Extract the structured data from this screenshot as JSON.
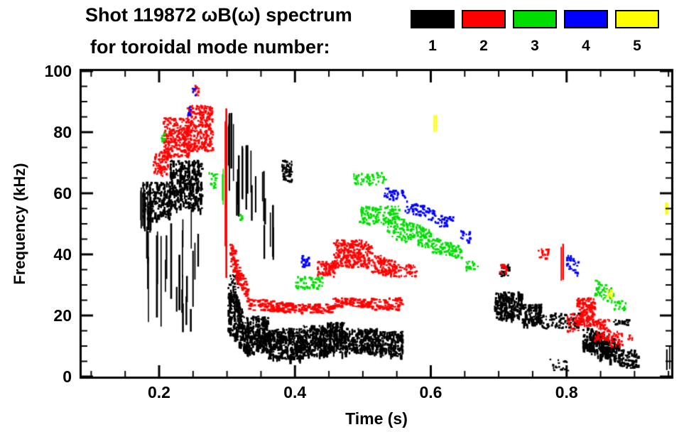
{
  "title": {
    "line1": "Shot 119872 ωB(ω) spectrum",
    "line2": "for toroidal mode number:"
  },
  "legend": {
    "modes": [
      {
        "label": "1",
        "color": "#000000"
      },
      {
        "label": "2",
        "color": "#ff0000"
      },
      {
        "label": "3",
        "color": "#00dd00"
      },
      {
        "label": "4",
        "color": "#0000ff"
      },
      {
        "label": "5",
        "color": "#ffff00"
      }
    ]
  },
  "chart_data": {
    "type": "scatter",
    "title": "Shot 119872 ωB(ω) spectrum",
    "subtitle": "for toroidal mode number:",
    "xlabel": "Time (s)",
    "ylabel": "Frequency (kHz)",
    "xlim": [
      0.086,
      0.954
    ],
    "ylim": [
      0,
      100
    ],
    "x_major_ticks": [
      0.2,
      0.4,
      0.6,
      0.8
    ],
    "x_tick_labels": [
      "0.2",
      "0.4",
      "0.6",
      "0.8"
    ],
    "x_minor_step": 0.05,
    "y_major_ticks": [
      0,
      20,
      40,
      60,
      80,
      100
    ],
    "y_tick_labels": [
      "0",
      "20",
      "40",
      "60",
      "80",
      "100"
    ],
    "y_minor_step": 5,
    "grid": false,
    "legend_position": "top-right",
    "cluster_format": "t=[t0,t1] s; f=[fmin,fmax] kHz at t0; f2 optional band at t1; n marks; s: d=dots, t=trace, v=vertical-streaks (len in kHz); vs=vertical texture",
    "series": [
      {
        "name": "n=1",
        "mode": 1,
        "color": "#000000",
        "clusters": [
          {
            "s": "v",
            "t": [
              0.172,
              0.196
            ],
            "f": [
              46,
              62
            ],
            "n": 10,
            "len": [
              5,
              14
            ]
          },
          {
            "s": "d",
            "t": [
              0.175,
              0.215
            ],
            "f": [
              52,
              64
            ],
            "n": 170,
            "vs": true
          },
          {
            "s": "v",
            "t": [
              0.18,
              0.215
            ],
            "f": [
              16,
              52
            ],
            "n": 9,
            "len": [
              10,
              30
            ]
          },
          {
            "s": "d",
            "t": [
              0.215,
              0.262
            ],
            "f": [
              55,
              71
            ],
            "n": 300,
            "vs": true
          },
          {
            "s": "v",
            "t": [
              0.215,
              0.26
            ],
            "f": [
              20,
              55
            ],
            "n": 10,
            "len": [
              8,
              26
            ]
          },
          {
            "s": "v",
            "t": [
              0.222,
              0.252
            ],
            "f": [
              14,
              30
            ],
            "n": 5,
            "len": [
              4,
              10
            ]
          },
          {
            "s": "v",
            "t": [
              0.296,
              0.31
            ],
            "f": [
              60,
              88
            ],
            "n": 7,
            "len": [
              10,
              26
            ]
          },
          {
            "s": "v",
            "t": [
              0.312,
              0.335
            ],
            "f": [
              52,
              76
            ],
            "n": 8,
            "len": [
              8,
              22
            ]
          },
          {
            "s": "v",
            "t": [
              0.335,
              0.355
            ],
            "f": [
              48,
              72
            ],
            "n": 5,
            "len": [
              6,
              18
            ]
          },
          {
            "s": "v",
            "t": [
              0.35,
              0.372
            ],
            "f": [
              38,
              58
            ],
            "n": 4,
            "len": [
              8,
              18
            ]
          },
          {
            "s": "d",
            "t": [
              0.38,
              0.394
            ],
            "f": [
              64,
              71
            ],
            "n": 60
          },
          {
            "s": "d",
            "t": [
              0.3,
              0.322
            ],
            "f": [
              14,
              30
            ],
            "f2": [
              10,
              24
            ],
            "n": 170,
            "vs": true
          },
          {
            "s": "d",
            "t": [
              0.302,
              0.315
            ],
            "f": [
              26,
              34
            ],
            "n": 30
          },
          {
            "s": "d",
            "t": [
              0.322,
              0.36
            ],
            "f": [
              8,
              20
            ],
            "n": 270,
            "vs": true
          },
          {
            "s": "d",
            "t": [
              0.36,
              0.41
            ],
            "f": [
              6,
              16
            ],
            "n": 310,
            "vs": true
          },
          {
            "s": "d",
            "t": [
              0.41,
              0.445
            ],
            "f": [
              7,
              17
            ],
            "n": 230,
            "vs": true
          },
          {
            "s": "d",
            "t": [
              0.445,
              0.47
            ],
            "f": [
              8,
              18
            ],
            "n": 170,
            "vs": true
          },
          {
            "s": "d",
            "t": [
              0.47,
              0.52
            ],
            "f": [
              8,
              16
            ],
            "n": 230,
            "vs": true
          },
          {
            "s": "d",
            "t": [
              0.52,
              0.558
            ],
            "f": [
              7,
              15
            ],
            "n": 160,
            "vs": true
          },
          {
            "s": "d",
            "t": [
              0.693,
              0.733
            ],
            "f": [
              19,
              28
            ],
            "n": 210,
            "vs": true
          },
          {
            "s": "d",
            "t": [
              0.733,
              0.762
            ],
            "f": [
              17,
              24
            ],
            "n": 130,
            "vs": true
          },
          {
            "s": "d",
            "t": [
              0.762,
              0.82
            ],
            "f": [
              16,
              21
            ],
            "n": 90
          },
          {
            "s": "d",
            "t": [
              0.7,
              0.714
            ],
            "f": [
              33,
              37
            ],
            "n": 25
          },
          {
            "s": "d",
            "t": [
              0.823,
              0.876
            ],
            "f": [
              8,
              17
            ],
            "f2": [
              5,
              12
            ],
            "n": 250,
            "vs": true
          },
          {
            "s": "d",
            "t": [
              0.876,
              0.905
            ],
            "f": [
              3,
              9
            ],
            "n": 100
          },
          {
            "s": "d",
            "t": [
              0.868,
              0.892
            ],
            "f": [
              17,
              19
            ],
            "n": 25
          },
          {
            "s": "d",
            "t": [
              0.77,
              0.802
            ],
            "f": [
              2,
              6
            ],
            "n": 18
          },
          {
            "s": "v",
            "t": [
              0.946,
              0.952
            ],
            "f": [
              2,
              10
            ],
            "n": 2,
            "len": [
              5,
              8
            ]
          }
        ]
      },
      {
        "name": "n=2",
        "mode": 2,
        "color": "#ff0000",
        "clusters": [
          {
            "s": "d",
            "t": [
              0.19,
              0.212
            ],
            "f": [
              66,
              74
            ],
            "n": 80
          },
          {
            "s": "d",
            "t": [
              0.205,
              0.243
            ],
            "f": [
              72,
              85
            ],
            "n": 260
          },
          {
            "s": "d",
            "t": [
              0.24,
              0.278
            ],
            "f": [
              74,
              89
            ],
            "n": 280
          },
          {
            "s": "d",
            "t": [
              0.248,
              0.258
            ],
            "f": [
              92,
              96
            ],
            "n": 12
          },
          {
            "s": "v",
            "t": [
              0.296,
              0.303
            ],
            "f": [
              26,
              89
            ],
            "n": 3,
            "len": [
              30,
              60
            ]
          },
          {
            "s": "t",
            "t": [
              0.303,
              0.33
            ],
            "f": [
              36,
              46
            ],
            "f2": [
              24,
              29
            ],
            "n": 90
          },
          {
            "s": "t",
            "t": [
              0.33,
              0.405
            ],
            "f": [
              22,
              26
            ],
            "f2": [
              21,
              24
            ],
            "n": 120
          },
          {
            "s": "t",
            "t": [
              0.405,
              0.455
            ],
            "f": [
              21,
              24
            ],
            "n": 70
          },
          {
            "s": "t",
            "t": [
              0.455,
              0.512
            ],
            "f": [
              23,
              26
            ],
            "n": 85
          },
          {
            "s": "t",
            "t": [
              0.512,
              0.556
            ],
            "f": [
              22,
              26
            ],
            "n": 55
          },
          {
            "s": "d",
            "t": [
              0.432,
              0.458
            ],
            "f": [
              33,
              38
            ],
            "n": 80
          },
          {
            "s": "d",
            "t": [
              0.455,
              0.512
            ],
            "f": [
              36,
              45
            ],
            "n": 280
          },
          {
            "s": "d",
            "t": [
              0.512,
              0.546
            ],
            "f": [
              34,
              41
            ],
            "f2": [
              33,
              38
            ],
            "n": 120
          },
          {
            "s": "d",
            "t": [
              0.546,
              0.578
            ],
            "f": [
              33,
              37
            ],
            "n": 45
          },
          {
            "s": "d",
            "t": [
              0.7,
              0.711
            ],
            "f": [
              34,
              37
            ],
            "n": 15
          },
          {
            "s": "d",
            "t": [
              0.757,
              0.774
            ],
            "f": [
              39,
              42
            ],
            "n": 20
          },
          {
            "s": "v",
            "t": [
              0.79,
              0.797
            ],
            "f": [
              31,
              44
            ],
            "n": 2,
            "len": [
              8,
              12
            ]
          },
          {
            "s": "d",
            "t": [
              0.8,
              0.817
            ],
            "f": [
              15,
              21
            ],
            "n": 30
          },
          {
            "s": "d",
            "t": [
              0.814,
              0.84
            ],
            "f": [
              17,
              26
            ],
            "n": 170
          },
          {
            "s": "d",
            "t": [
              0.84,
              0.862
            ],
            "f": [
              12,
              19
            ],
            "n": 85
          },
          {
            "s": "d",
            "t": [
              0.862,
              0.884
            ],
            "f": [
              10,
              15
            ],
            "n": 30
          },
          {
            "s": "d",
            "t": [
              0.888,
              0.897
            ],
            "f": [
              12,
              14
            ],
            "n": 6
          }
        ]
      },
      {
        "name": "n=3",
        "mode": 3,
        "color": "#00dd00",
        "clusters": [
          {
            "s": "d",
            "t": [
              0.2,
              0.211
            ],
            "f": [
              77,
              80
            ],
            "n": 10
          },
          {
            "s": "d",
            "t": [
              0.272,
              0.285
            ],
            "f": [
              62,
              67
            ],
            "n": 18
          },
          {
            "s": "v",
            "t": [
              0.29,
              0.296
            ],
            "f": [
              56,
              70
            ],
            "n": 2,
            "len": [
              8,
              12
            ]
          },
          {
            "s": "d",
            "t": [
              0.315,
              0.323
            ],
            "f": [
              51,
              54
            ],
            "n": 8
          },
          {
            "s": "d",
            "t": [
              0.4,
              0.44
            ],
            "f": [
              29,
              33
            ],
            "n": 55
          },
          {
            "s": "d",
            "t": [
              0.485,
              0.532
            ],
            "f": [
              63,
              67
            ],
            "n": 50
          },
          {
            "s": "d",
            "t": [
              0.494,
              0.552
            ],
            "f": [
              50,
              56
            ],
            "n": 130
          },
          {
            "s": "d",
            "t": [
              0.535,
              0.6
            ],
            "f": [
              46,
              54
            ],
            "f2": [
              42,
              48
            ],
            "n": 160
          },
          {
            "s": "d",
            "t": [
              0.6,
              0.645
            ],
            "f": [
              41,
              46
            ],
            "f2": [
              39,
              43
            ],
            "n": 95
          },
          {
            "s": "d",
            "t": [
              0.65,
              0.668
            ],
            "f": [
              35,
              38
            ],
            "n": 18
          },
          {
            "s": "d",
            "t": [
              0.84,
              0.868
            ],
            "f": [
              27,
              32
            ],
            "f2": [
              24,
              29
            ],
            "n": 45
          },
          {
            "s": "d",
            "t": [
              0.868,
              0.886
            ],
            "f": [
              22,
              26
            ],
            "n": 20
          }
        ]
      },
      {
        "name": "n=4",
        "mode": 4,
        "color": "#0000ff",
        "clusters": [
          {
            "s": "d",
            "t": [
              0.238,
              0.245
            ],
            "f": [
              86,
              89
            ],
            "n": 6
          },
          {
            "s": "d",
            "t": [
              0.248,
              0.254
            ],
            "f": [
              92,
              95
            ],
            "n": 5
          },
          {
            "s": "d",
            "t": [
              0.408,
              0.421
            ],
            "f": [
              36,
              40
            ],
            "n": 26
          },
          {
            "s": "d",
            "t": [
              0.53,
              0.56
            ],
            "f": [
              58,
              62
            ],
            "n": 38
          },
          {
            "s": "d",
            "t": [
              0.56,
              0.605
            ],
            "f": [
              54,
              59
            ],
            "f2": [
              51,
              55
            ],
            "n": 62
          },
          {
            "s": "d",
            "t": [
              0.605,
              0.632
            ],
            "f": [
              49,
              53
            ],
            "n": 32
          },
          {
            "s": "d",
            "t": [
              0.643,
              0.658
            ],
            "f": [
              44,
              48
            ],
            "n": 18
          },
          {
            "s": "d",
            "t": [
              0.797,
              0.816
            ],
            "f": [
              36,
              41
            ],
            "f2": [
              33,
              38
            ],
            "n": 30
          }
        ]
      },
      {
        "name": "n=5",
        "mode": 5,
        "color": "#ffff00",
        "clusters": [
          {
            "s": "v",
            "t": [
              0.6,
              0.607
            ],
            "f": [
              80,
              86
            ],
            "n": 2,
            "len": [
              4,
              6
            ]
          },
          {
            "s": "d",
            "t": [
              0.857,
              0.867
            ],
            "f": [
              26,
              29
            ],
            "n": 10
          },
          {
            "s": "v",
            "t": [
              0.944,
              0.95
            ],
            "f": [
              53,
              57
            ],
            "n": 2,
            "len": [
              3,
              5
            ]
          }
        ]
      }
    ]
  }
}
